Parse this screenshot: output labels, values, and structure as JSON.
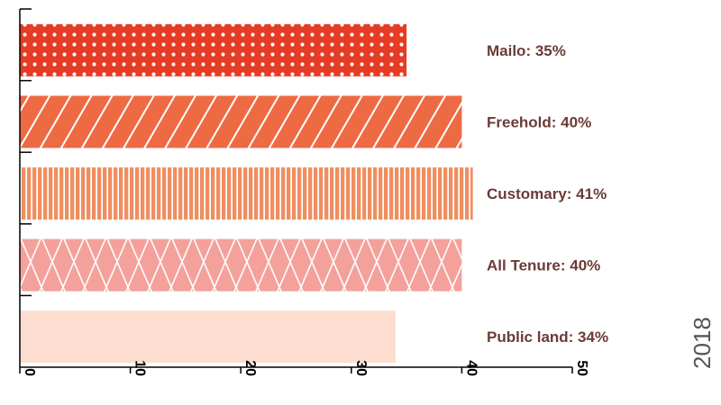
{
  "chart_data": {
    "type": "bar",
    "orientation": "horizontal",
    "categories": [
      "Mailo",
      "Freehold",
      "Customary",
      "All Tenure",
      "Public land"
    ],
    "values": [
      35,
      40,
      41,
      40,
      34
    ],
    "bar_labels": [
      "Mailo: 35%",
      "Freehold: 40%",
      "Customary: 41%",
      "All Tenure: 40%",
      "Public land: 34%"
    ],
    "xlim": [
      0,
      50
    ],
    "x_ticks": [
      "0",
      "10",
      "20",
      "30",
      "40",
      "50"
    ],
    "grid": false,
    "colors": [
      "#e63b24",
      "#ee6a43",
      "#f08e60",
      "#f4a19c",
      "#fcddcf"
    ],
    "patterns": [
      "dots",
      "diagonal-stripes",
      "vertical-stripes",
      "crosshatch",
      "solid"
    ],
    "label_color": "#6b3b36",
    "annotation": "2018"
  }
}
